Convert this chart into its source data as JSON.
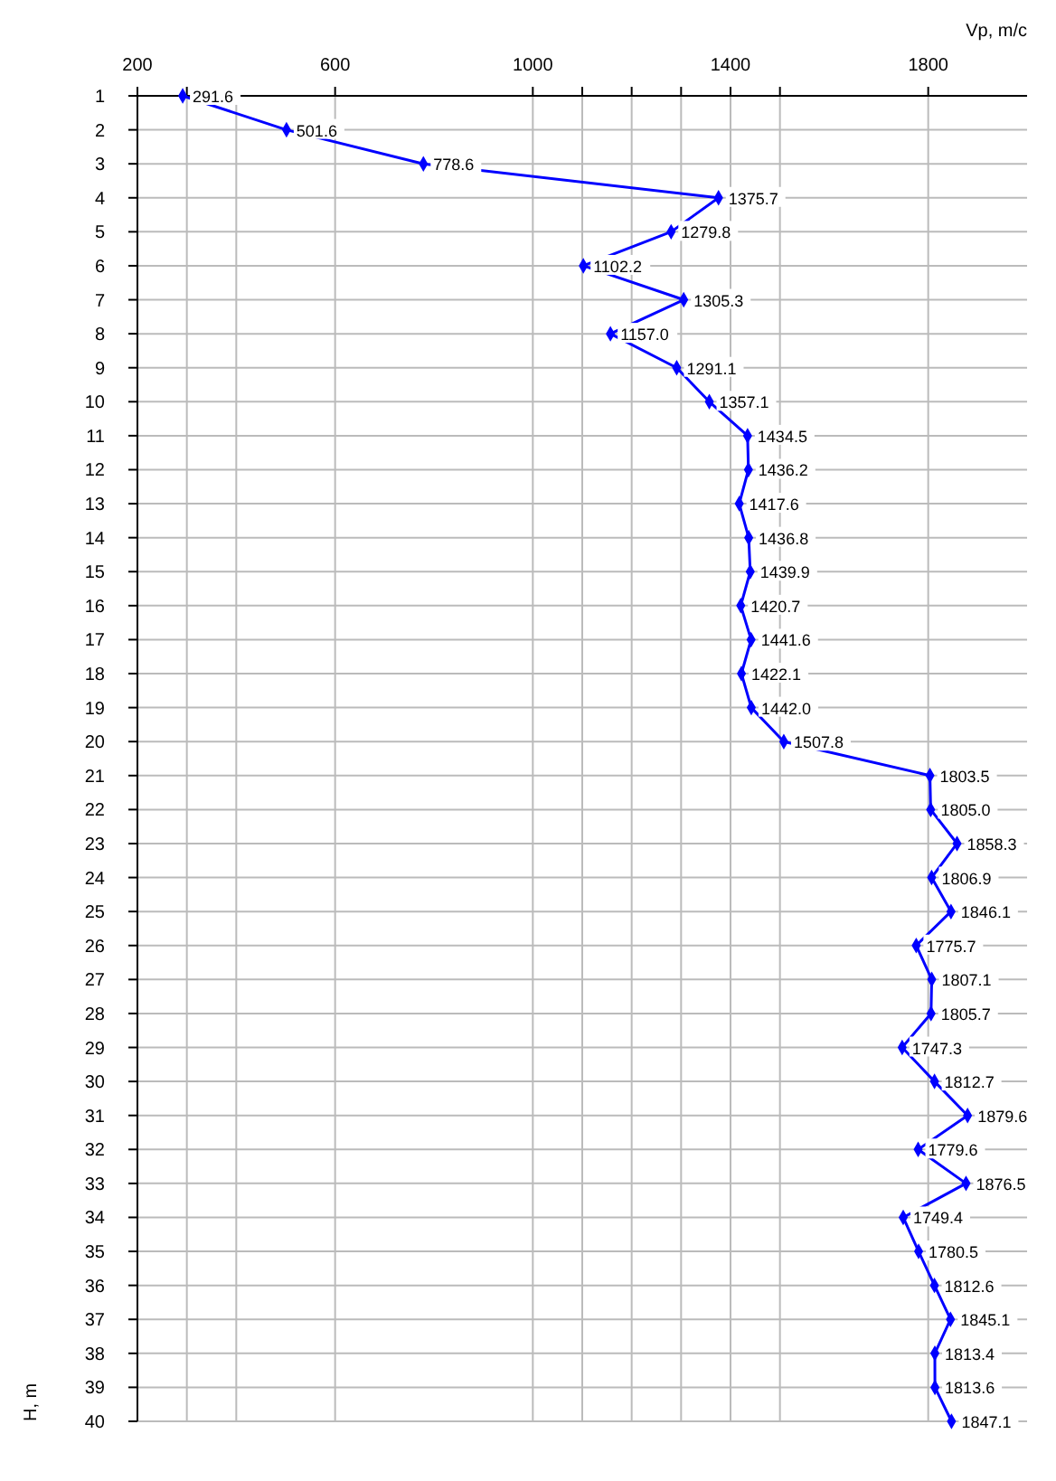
{
  "chart_data": {
    "type": "line",
    "orientation": "horizontal",
    "xlabel": "Vp, m/c",
    "ylabel": "H, m",
    "categories": [
      "1",
      "2",
      "3",
      "4",
      "5",
      "6",
      "7",
      "8",
      "9",
      "10",
      "11",
      "12",
      "13",
      "14",
      "15",
      "16",
      "17",
      "18",
      "19",
      "20",
      "21",
      "22",
      "23",
      "24",
      "25",
      "26",
      "27",
      "28",
      "29",
      "30",
      "31",
      "32",
      "33",
      "34",
      "35",
      "36",
      "37",
      "38",
      "39",
      "40"
    ],
    "values": [
      291.6,
      501.6,
      778.6,
      1375.7,
      1279.8,
      1102.2,
      1305.3,
      1157.0,
      1291.1,
      1357.1,
      1434.5,
      1436.2,
      1417.6,
      1436.8,
      1439.9,
      1420.7,
      1441.6,
      1422.1,
      1442.0,
      1507.8,
      1803.5,
      1805.0,
      1858.3,
      1806.9,
      1846.1,
      1775.7,
      1807.1,
      1805.7,
      1747.3,
      1812.7,
      1879.6,
      1779.6,
      1876.5,
      1749.4,
      1780.5,
      1812.6,
      1845.1,
      1813.4,
      1813.6,
      1847.1
    ],
    "value_labels": [
      "291.6",
      "501.6",
      "778.6",
      "1375.7",
      "1279.8",
      "1102.2",
      "1305.3",
      "1157.0",
      "1291.1",
      "1357.1",
      "1434.5",
      "1436.2",
      "1417.6",
      "1436.8",
      "1439.9",
      "1420.7",
      "1441.6",
      "1422.1",
      "1442.0",
      "1507.8",
      "1803.5",
      "1805.0",
      "1858.3",
      "1806.9",
      "1846.1",
      "1775.7",
      "1807.1",
      "1805.7",
      "1747.3",
      "1812.7",
      "1879.6",
      "1779.6",
      "1876.5",
      "1749.4",
      "1780.5",
      "1812.6",
      "1845.1",
      "1813.4",
      "1813.6",
      "1847.1"
    ],
    "color": "#0000ff",
    "marker": "diamond",
    "xlim": [
      200,
      2000
    ],
    "xticks": [
      200,
      {
        "value": 300,
        "label": null
      },
      {
        "value": 400,
        "label": null
      },
      600,
      1000,
      {
        "value": 1100,
        "label": null
      },
      {
        "value": 1200,
        "label": null
      },
      {
        "value": 1300,
        "label": null
      },
      1400,
      {
        "value": 1500,
        "label": null
      },
      1800
    ],
    "grid": true
  }
}
